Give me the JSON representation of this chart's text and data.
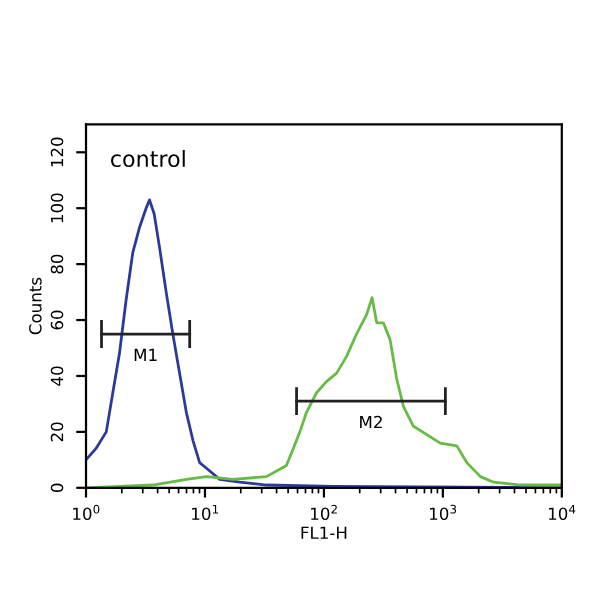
{
  "chart_data": {
    "type": "line",
    "xlabel": "FL1-H",
    "ylabel": "Counts",
    "log": "x",
    "grid": false,
    "legend": false,
    "xlim": [
      1,
      10000
    ],
    "ylim": [
      0,
      130
    ],
    "xticks": [
      {
        "value": 1,
        "label": "10$^{0}$"
      },
      {
        "value": 10,
        "label": "10$^{1}$"
      },
      {
        "value": 100,
        "label": "10$^{2}$"
      },
      {
        "value": 1000,
        "label": "10$^{3}$"
      },
      {
        "value": 10000,
        "label": "10$^{4}$"
      }
    ],
    "yticks": [
      0,
      20,
      40,
      60,
      80,
      100,
      120
    ],
    "annotations": [
      "control"
    ],
    "series": [
      {
        "color": "#2a3a9a",
        "x": [
          1,
          1.21,
          1.48,
          1.68,
          1.91,
          2.17,
          2.47,
          2.81,
          3.2,
          3.42,
          3.74,
          4.15,
          4.72,
          5.37,
          6.12,
          6.97,
          7.92,
          9.02,
          10.3,
          13.3,
          19.6,
          32.9,
          120,
          9750
        ],
        "values": [
          10,
          14,
          20,
          34,
          48,
          67,
          84,
          93,
          100,
          103,
          98,
          86,
          70,
          55,
          41,
          27,
          17,
          9,
          7,
          3,
          2,
          1,
          0.5,
          0
        ]
      },
      {
        "color": "#66bb44",
        "x": [
          1,
          3.65,
          6.97,
          10.3,
          17.2,
          32.9,
          48.4,
          55.2,
          62.8,
          71.4,
          86.7,
          105,
          128,
          155,
          188,
          229,
          254,
          278,
          316,
          360,
          409,
          467,
          566,
          733,
          951,
          1310,
          1590,
          2070,
          2670,
          4490,
          9750
        ],
        "values": [
          0,
          1,
          3,
          4,
          3,
          4,
          8,
          14,
          20,
          27,
          34,
          38,
          41,
          47,
          55,
          62,
          68,
          59,
          59,
          53,
          39,
          29,
          22,
          19,
          16,
          15,
          9,
          4,
          2,
          1,
          1
        ]
      },
      {
        "name": "M1",
        "color": "#222222",
        "x": [
          1.35,
          7.44
        ],
        "values": [
          55,
          55
        ],
        "errors": [
          5,
          5
        ]
      },
      {
        "name": "M2",
        "color": "#222222",
        "x": [
          58.9,
          1050
        ],
        "values": [
          31,
          31
        ],
        "errors": [
          5,
          5
        ]
      }
    ]
  }
}
